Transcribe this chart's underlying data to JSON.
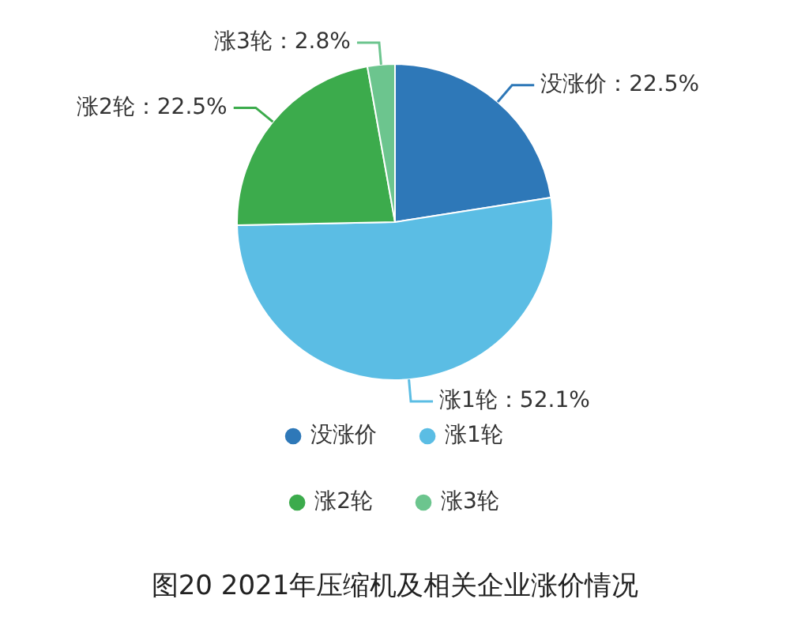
{
  "chart_data": {
    "type": "pie",
    "title": "图20 2021年压缩机及相关企业涨价情况",
    "categories": [
      "没涨价",
      "涨1轮",
      "涨2轮",
      "涨3轮"
    ],
    "values": [
      22.5,
      52.1,
      22.5,
      2.8
    ],
    "colors": [
      "#2e78b8",
      "#5bbde4",
      "#3cab4c",
      "#6cc58e"
    ],
    "value_labels": [
      "没涨价：22.5%",
      "涨1轮：52.1%",
      "涨2轮：22.5%",
      "涨3轮：2.8%"
    ],
    "legend": "bottom"
  }
}
